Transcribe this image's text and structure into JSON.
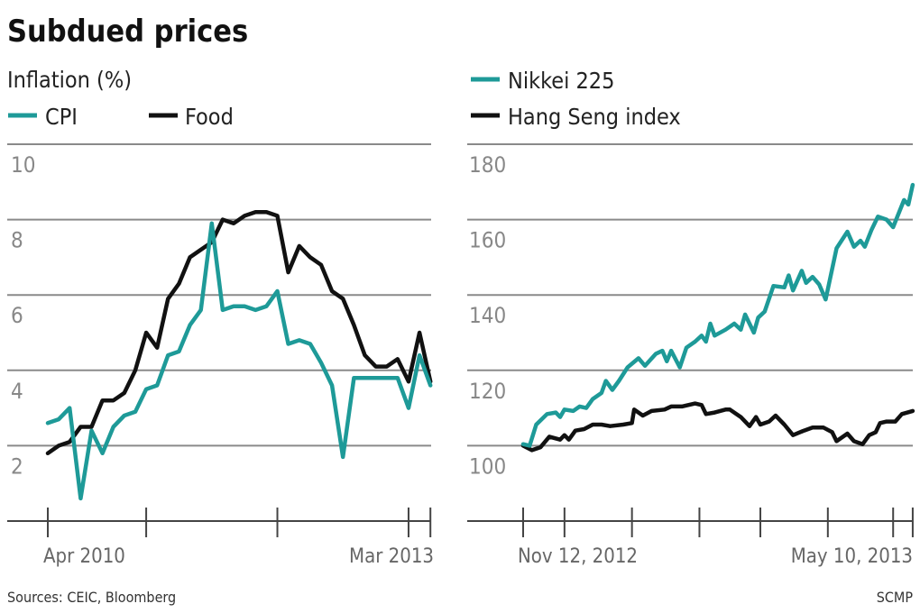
{
  "title": "Subdued prices",
  "source": "Sources: CEIC, Bloomberg",
  "credit": "SCMP",
  "colors": {
    "teal": "#1e9a98",
    "black": "#111111"
  },
  "chart_data": [
    {
      "type": "line",
      "subtitle": "Inflation (%)",
      "ylim": [
        0,
        10
      ],
      "yticks": [
        2,
        4,
        6,
        8,
        10
      ],
      "ytick_labels": [
        "2",
        "4",
        "6",
        "8",
        "10"
      ],
      "grid": true,
      "legend": "top-left",
      "x_tick_labels": [
        "Apr 2010",
        "Mar 2013"
      ],
      "x_tick_marks": [
        "2010-04",
        "2011-01",
        "2012-01",
        "2013-01",
        "2013-03"
      ],
      "x": [
        "2010-04",
        "2010-05",
        "2010-06",
        "2010-07",
        "2010-08",
        "2010-09",
        "2010-10",
        "2010-11",
        "2010-12",
        "2011-01",
        "2011-02",
        "2011-03",
        "2011-04",
        "2011-05",
        "2011-06",
        "2011-07",
        "2011-08",
        "2011-09",
        "2011-10",
        "2011-11",
        "2011-12",
        "2012-01",
        "2012-02",
        "2012-03",
        "2012-04",
        "2012-05",
        "2012-06",
        "2012-07",
        "2012-08",
        "2012-09",
        "2012-10",
        "2012-11",
        "2012-12",
        "2013-01",
        "2013-02",
        "2013-03"
      ],
      "series": [
        {
          "name": "CPI",
          "color": "#1e9a98",
          "values": [
            2.6,
            2.7,
            3.0,
            0.6,
            2.4,
            1.8,
            2.5,
            2.8,
            2.9,
            3.5,
            3.6,
            4.4,
            4.5,
            5.2,
            5.6,
            7.9,
            5.6,
            5.7,
            5.7,
            5.6,
            5.7,
            6.1,
            4.7,
            4.8,
            4.7,
            4.2,
            3.6,
            1.7,
            3.8,
            3.8,
            3.8,
            3.8,
            3.8,
            3.0,
            4.4,
            3.6
          ]
        },
        {
          "name": "Food",
          "color": "#111111",
          "values": [
            1.8,
            2.0,
            2.1,
            2.5,
            2.5,
            3.2,
            3.2,
            3.4,
            4.0,
            5.0,
            4.6,
            5.9,
            6.3,
            7.0,
            7.2,
            7.4,
            8.0,
            7.9,
            8.1,
            8.2,
            8.2,
            8.1,
            6.6,
            7.3,
            7.0,
            6.8,
            6.1,
            5.9,
            5.2,
            4.4,
            4.1,
            4.1,
            4.3,
            3.7,
            5.0,
            3.7
          ]
        }
      ]
    },
    {
      "type": "line",
      "ylim": [
        80,
        180
      ],
      "yticks": [
        100,
        120,
        140,
        160,
        180
      ],
      "ytick_labels": [
        "100",
        "120",
        "140",
        "160",
        "180"
      ],
      "grid": true,
      "legend": "top-left",
      "x_tick_labels": [
        "Nov 12, 2012",
        "May 10, 2013"
      ],
      "x_tick_marks": [
        "2012-11-12",
        "2012-12-01",
        "2013-01-01",
        "2013-02-01",
        "2013-03-01",
        "2013-04-01",
        "2013-05-01",
        "2013-05-10"
      ],
      "xlim": [
        "2012-11-12",
        "2013-05-10"
      ],
      "series": [
        {
          "name": "Nikkei 225",
          "color": "#1e9a98",
          "x": [
            "2012-11-12",
            "2012-11-15",
            "2012-11-18",
            "2012-11-23",
            "2012-11-27",
            "2012-11-29",
            "2012-12-01",
            "2012-12-05",
            "2012-12-08",
            "2012-12-11",
            "2012-12-14",
            "2012-12-18",
            "2012-12-20",
            "2012-12-23",
            "2012-12-26",
            "2012-12-30",
            "2013-01-04",
            "2013-01-07",
            "2013-01-12",
            "2013-01-15",
            "2013-01-17",
            "2013-01-19",
            "2013-01-23",
            "2013-01-26",
            "2013-01-30",
            "2013-02-02",
            "2013-02-04",
            "2013-02-06",
            "2013-02-08",
            "2013-02-13",
            "2013-02-17",
            "2013-02-20",
            "2013-02-22",
            "2013-02-26",
            "2013-02-28",
            "2013-03-03",
            "2013-03-07",
            "2013-03-12",
            "2013-03-14",
            "2013-03-16",
            "2013-03-20",
            "2013-03-22",
            "2013-03-25",
            "2013-03-28",
            "2013-03-31",
            "2013-04-05",
            "2013-04-10",
            "2013-04-13",
            "2013-04-16",
            "2013-04-18",
            "2013-04-21",
            "2013-04-24",
            "2013-04-28",
            "2013-05-01",
            "2013-05-06",
            "2013-05-08",
            "2013-05-10"
          ],
          "values": [
            100.4,
            100,
            105.6,
            108.4,
            108.8,
            107.6,
            109.6,
            109.2,
            110.4,
            110,
            112.4,
            114,
            117.2,
            114.8,
            117.2,
            120.8,
            123.2,
            121.2,
            124.4,
            125.2,
            122.4,
            125.2,
            120.8,
            126,
            127.6,
            129.2,
            127.6,
            132.4,
            129.2,
            130.8,
            132.4,
            130.8,
            134.8,
            130,
            134,
            135.6,
            142.4,
            142,
            145.2,
            141.2,
            146.4,
            143.2,
            144.8,
            142.8,
            138.8,
            152.4,
            156.8,
            152.8,
            154.4,
            152.8,
            157.2,
            160.8,
            160,
            158,
            165.2,
            164,
            169.2
          ]
        },
        {
          "name": "Hang Seng index",
          "color": "#111111",
          "x": [
            "2012-11-12",
            "2012-11-16",
            "2012-11-20",
            "2012-11-24",
            "2012-11-29",
            "2012-12-01",
            "2012-12-03",
            "2012-12-06",
            "2012-12-10",
            "2012-12-14",
            "2012-12-18",
            "2012-12-22",
            "2012-12-28",
            "2013-01-01",
            "2013-01-02",
            "2013-01-06",
            "2013-01-10",
            "2013-01-16",
            "2013-01-19",
            "2013-01-24",
            "2013-01-30",
            "2013-02-02",
            "2013-02-04",
            "2013-02-08",
            "2013-02-13",
            "2013-02-15",
            "2013-02-20",
            "2013-02-24",
            "2013-02-27",
            "2013-03-01",
            "2013-03-05",
            "2013-03-08",
            "2013-03-12",
            "2013-03-16",
            "2013-03-21",
            "2013-03-25",
            "2013-03-30",
            "2013-04-03",
            "2013-04-05",
            "2013-04-10",
            "2013-04-13",
            "2013-04-17",
            "2013-04-20",
            "2013-04-23",
            "2013-04-25",
            "2013-04-28",
            "2013-05-02",
            "2013-05-05",
            "2013-05-10"
          ],
          "values": [
            100,
            98.8,
            99.6,
            102.4,
            101.6,
            102.8,
            101.6,
            104,
            104.4,
            105.6,
            105.6,
            105.2,
            105.6,
            106,
            109.6,
            108,
            109.2,
            109.6,
            110.4,
            110.4,
            111.2,
            110.8,
            108.4,
            108.8,
            109.6,
            109.6,
            107.6,
            105.2,
            107.6,
            105.6,
            106.4,
            108,
            105.6,
            102.8,
            104,
            104.8,
            104.8,
            103.6,
            101.2,
            103.2,
            101.2,
            100.4,
            102.8,
            103.6,
            106,
            106.4,
            106.4,
            108.4,
            109.2
          ]
        }
      ]
    }
  ]
}
